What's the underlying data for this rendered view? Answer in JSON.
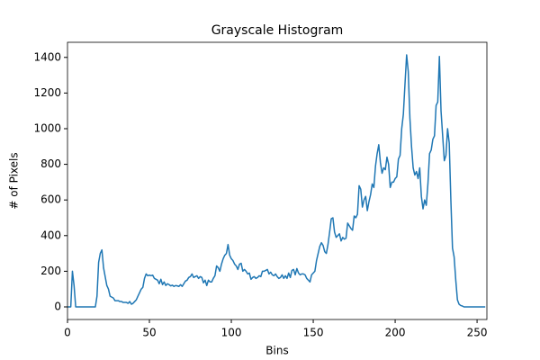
{
  "chart_data": {
    "type": "line",
    "title": "Grayscale Histogram",
    "x_label": "Bins",
    "y_label": "# of Pixels",
    "x": [
      0,
      1,
      2,
      3,
      4,
      5,
      6,
      7,
      8,
      9,
      10,
      11,
      12,
      13,
      14,
      15,
      16,
      17,
      18,
      19,
      20,
      21,
      22,
      23,
      24,
      25,
      26,
      27,
      28,
      29,
      30,
      31,
      32,
      33,
      34,
      35,
      36,
      37,
      38,
      39,
      40,
      41,
      42,
      43,
      44,
      45,
      46,
      47,
      48,
      49,
      50,
      51,
      52,
      53,
      54,
      55,
      56,
      57,
      58,
      59,
      60,
      61,
      62,
      63,
      64,
      65,
      66,
      67,
      68,
      69,
      70,
      71,
      72,
      73,
      74,
      75,
      76,
      77,
      78,
      79,
      80,
      81,
      82,
      83,
      84,
      85,
      86,
      87,
      88,
      89,
      90,
      91,
      92,
      93,
      94,
      95,
      96,
      97,
      98,
      99,
      100,
      101,
      102,
      103,
      104,
      105,
      106,
      107,
      108,
      109,
      110,
      111,
      112,
      113,
      114,
      115,
      116,
      117,
      118,
      119,
      120,
      121,
      122,
      123,
      124,
      125,
      126,
      127,
      128,
      129,
      130,
      131,
      132,
      133,
      134,
      135,
      136,
      137,
      138,
      139,
      140,
      141,
      142,
      143,
      144,
      145,
      146,
      147,
      148,
      149,
      150,
      151,
      152,
      153,
      154,
      155,
      156,
      157,
      158,
      159,
      160,
      161,
      162,
      163,
      164,
      165,
      166,
      167,
      168,
      169,
      170,
      171,
      172,
      173,
      174,
      175,
      176,
      177,
      178,
      179,
      180,
      181,
      182,
      183,
      184,
      185,
      186,
      187,
      188,
      189,
      190,
      191,
      192,
      193,
      194,
      195,
      196,
      197,
      198,
      199,
      200,
      201,
      202,
      203,
      204,
      205,
      206,
      207,
      208,
      209,
      210,
      211,
      212,
      213,
      214,
      215,
      216,
      217,
      218,
      219,
      220,
      221,
      222,
      223,
      224,
      225,
      226,
      227,
      228,
      229,
      230,
      231,
      232,
      233,
      234,
      235,
      236,
      237,
      238,
      239,
      240,
      241,
      242,
      243,
      244,
      245,
      246,
      247,
      248,
      249,
      250,
      251,
      252,
      253,
      254,
      255
    ],
    "series": [
      {
        "color": "#1f77b4",
        "values": [
          0,
          0,
          0,
          200,
          120,
          0,
          0,
          0,
          0,
          0,
          0,
          0,
          0,
          0,
          0,
          0,
          0,
          0,
          60,
          250,
          300,
          320,
          220,
          170,
          120,
          100,
          60,
          55,
          50,
          35,
          35,
          35,
          30,
          30,
          25,
          25,
          25,
          20,
          30,
          15,
          20,
          30,
          40,
          60,
          80,
          100,
          110,
          160,
          185,
          175,
          178,
          175,
          178,
          160,
          155,
          150,
          130,
          155,
          125,
          140,
          120,
          130,
          125,
          118,
          122,
          115,
          120,
          118,
          115,
          125,
          115,
          130,
          145,
          150,
          165,
          170,
          185,
          165,
          170,
          175,
          160,
          170,
          165,
          135,
          150,
          120,
          150,
          140,
          140,
          160,
          175,
          230,
          220,
          200,
          240,
          270,
          290,
          300,
          350,
          290,
          270,
          260,
          240,
          230,
          210,
          240,
          245,
          200,
          210,
          200,
          185,
          190,
          155,
          165,
          170,
          160,
          165,
          175,
          170,
          200,
          200,
          205,
          210,
          185,
          195,
          180,
          175,
          185,
          170,
          160,
          165,
          180,
          160,
          175,
          160,
          190,
          165,
          205,
          210,
          180,
          215,
          190,
          180,
          185,
          185,
          180,
          160,
          150,
          140,
          180,
          190,
          200,
          260,
          300,
          340,
          360,
          345,
          310,
          300,
          350,
          420,
          495,
          500,
          420,
          390,
          400,
          410,
          370,
          390,
          380,
          385,
          470,
          455,
          440,
          430,
          510,
          500,
          520,
          680,
          660,
          560,
          600,
          620,
          540,
          590,
          630,
          690,
          670,
          790,
          860,
          910,
          810,
          750,
          780,
          770,
          840,
          800,
          670,
          700,
          700,
          720,
          730,
          830,
          850,
          1000,
          1080,
          1250,
          1414,
          1320,
          1060,
          900,
          780,
          740,
          760,
          720,
          780,
          620,
          550,
          600,
          570,
          690,
          860,
          880,
          940,
          960,
          1130,
          1150,
          1405,
          1100,
          960,
          820,
          850,
          1000,
          920,
          600,
          330,
          280,
          150,
          40,
          15,
          8,
          5,
          0,
          0,
          0,
          0,
          0,
          0,
          0,
          0,
          0,
          0,
          0,
          0,
          0,
          0
        ]
      }
    ],
    "xlim": [
      0,
      256
    ],
    "ylim": [
      -70.7,
      1484.7
    ],
    "xticks": [
      0,
      50,
      100,
      150,
      200,
      250
    ],
    "yticks": [
      0,
      200,
      400,
      600,
      800,
      1000,
      1200,
      1400
    ]
  }
}
